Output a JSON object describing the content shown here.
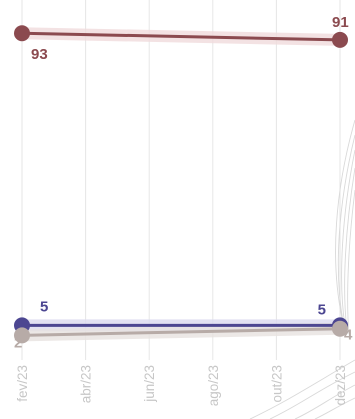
{
  "chart_data": {
    "type": "line",
    "x_ticks": [
      "fev/23",
      "abr/23",
      "jun/23",
      "ago/23",
      "out/23",
      "dez/23"
    ],
    "x_range": [
      "2023-02",
      "2023-12"
    ],
    "ylim": [
      0,
      100
    ],
    "grid": "vertical",
    "legend": "none",
    "series": [
      {
        "color": "#8b4a4f",
        "band_color": "#f1dcdd",
        "points": [
          {
            "x": "2023-02",
            "y": 93,
            "label": "93"
          },
          {
            "x": "2023-12",
            "y": 91,
            "label": "91"
          }
        ]
      },
      {
        "color": "#4c4691",
        "band_color": "#dcdaf0",
        "points": [
          {
            "x": "2023-02",
            "y": 5,
            "label": "5"
          },
          {
            "x": "2023-12",
            "y": 5,
            "label": "5"
          }
        ]
      },
      {
        "color": "#b7aba7",
        "band_color": "#e8e3e1",
        "points": [
          {
            "x": "2023-02",
            "y": 2,
            "label": "2"
          },
          {
            "x": "2023-12",
            "y": 4,
            "label": "4"
          }
        ]
      }
    ]
  }
}
